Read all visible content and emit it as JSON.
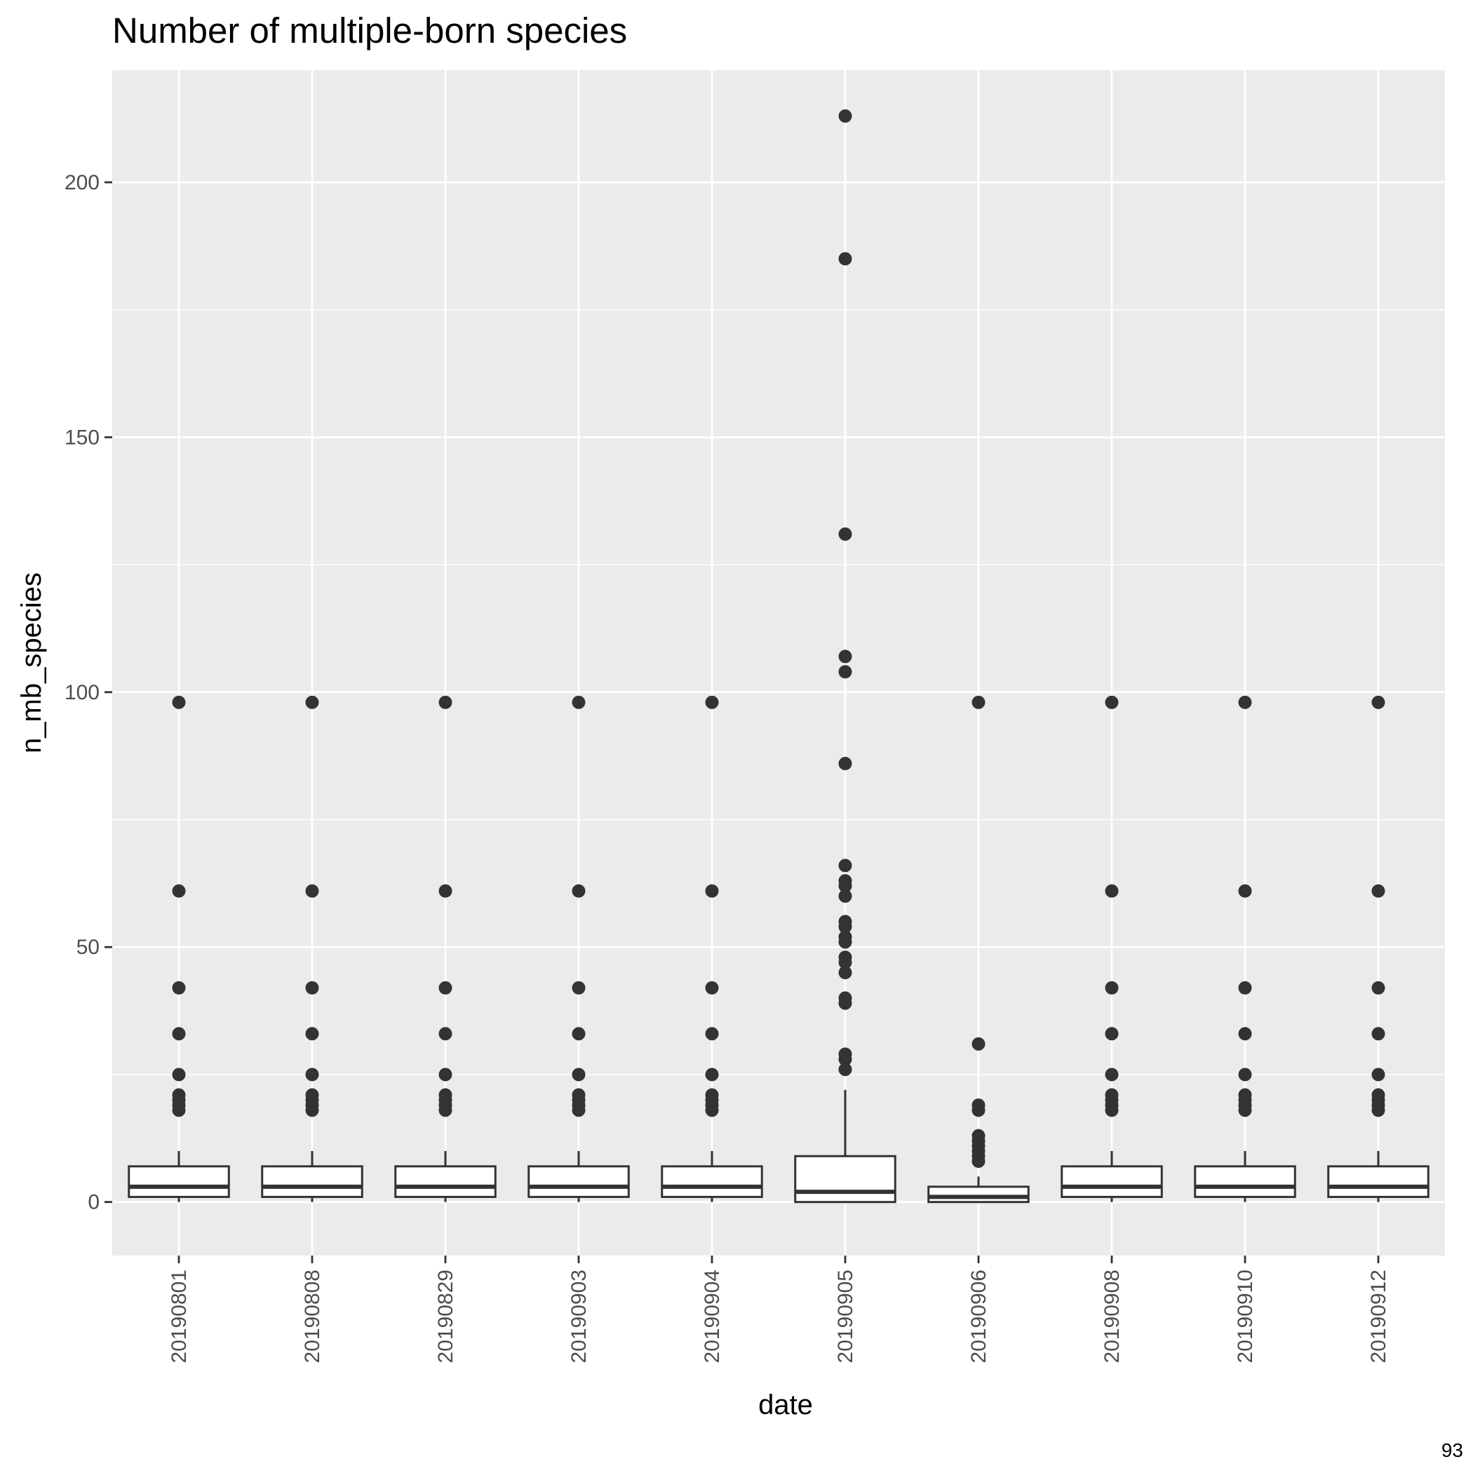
{
  "page_number": "93",
  "chart_data": {
    "type": "boxplot",
    "title": "Number of multiple-born species",
    "xlabel": "date",
    "ylabel": "n_mb_species",
    "ylim": [
      -10.5,
      222
    ],
    "yticks": [
      0,
      50,
      100,
      150,
      200
    ],
    "grid": true,
    "colors": {
      "panel": "#ebebeb",
      "grid": "#ffffff",
      "box_fill": "#ffffff",
      "box_line": "#333333",
      "outlier": "#333333",
      "tick_text": "#4d4d4d"
    },
    "categories": [
      "20190801",
      "20190808",
      "20190829",
      "20190903",
      "20190904",
      "20190905",
      "20190906",
      "20190908",
      "20190910",
      "20190912"
    ],
    "boxes": [
      {
        "q1": 1,
        "median": 3,
        "q3": 7,
        "whisker_low": 0,
        "whisker_high": 10,
        "outliers": [
          18,
          19,
          20,
          21,
          25,
          33,
          42,
          61,
          98
        ]
      },
      {
        "q1": 1,
        "median": 3,
        "q3": 7,
        "whisker_low": 0,
        "whisker_high": 10,
        "outliers": [
          18,
          19,
          20,
          21,
          25,
          33,
          42,
          61,
          98
        ]
      },
      {
        "q1": 1,
        "median": 3,
        "q3": 7,
        "whisker_low": 0,
        "whisker_high": 10,
        "outliers": [
          18,
          19,
          20,
          21,
          25,
          33,
          42,
          61,
          98
        ]
      },
      {
        "q1": 1,
        "median": 3,
        "q3": 7,
        "whisker_low": 0,
        "whisker_high": 10,
        "outliers": [
          18,
          19,
          20,
          21,
          25,
          33,
          42,
          61,
          98
        ]
      },
      {
        "q1": 1,
        "median": 3,
        "q3": 7,
        "whisker_low": 0,
        "whisker_high": 10,
        "outliers": [
          18,
          19,
          20,
          21,
          25,
          33,
          42,
          61,
          98
        ]
      },
      {
        "q1": 0,
        "median": 2,
        "q3": 9,
        "whisker_low": 0,
        "whisker_high": 22,
        "outliers": [
          26,
          28,
          29,
          39,
          40,
          45,
          47,
          48,
          51,
          52,
          54,
          55,
          60,
          62,
          63,
          66,
          86,
          104,
          107,
          131,
          185,
          213
        ]
      },
      {
        "q1": 0,
        "median": 1,
        "q3": 3,
        "whisker_low": 0,
        "whisker_high": 5,
        "outliers": [
          8,
          9,
          10,
          11,
          12,
          13,
          18,
          19,
          31,
          98
        ]
      },
      {
        "q1": 1,
        "median": 3,
        "q3": 7,
        "whisker_low": 0,
        "whisker_high": 10,
        "outliers": [
          18,
          19,
          20,
          21,
          25,
          33,
          42,
          61,
          98
        ]
      },
      {
        "q1": 1,
        "median": 3,
        "q3": 7,
        "whisker_low": 0,
        "whisker_high": 10,
        "outliers": [
          18,
          19,
          20,
          21,
          25,
          33,
          42,
          61,
          98
        ]
      },
      {
        "q1": 1,
        "median": 3,
        "q3": 7,
        "whisker_low": 0,
        "whisker_high": 10,
        "outliers": [
          18,
          19,
          20,
          21,
          25,
          33,
          42,
          61,
          98
        ]
      }
    ]
  }
}
